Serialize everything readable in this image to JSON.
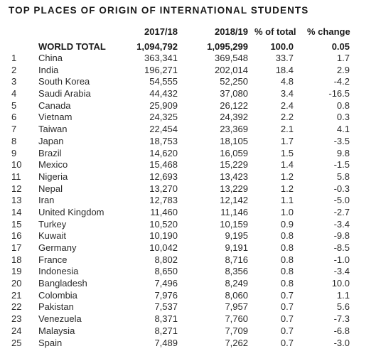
{
  "title": "TOP PLACES OF ORIGIN OF INTERNATIONAL STUDENTS",
  "headers": {
    "y2017": "2017/18",
    "y2018": "2018/19",
    "pct_total": "% of total",
    "pct_change": "% change"
  },
  "world_total": {
    "label": "WORLD TOTAL",
    "y2017": "1,094,792",
    "y2018": "1,095,299",
    "pct_total": "100.0",
    "pct_change": "0.05"
  },
  "rows": [
    {
      "rank": "1",
      "country": "China",
      "y2017": "363,341",
      "y2018": "369,548",
      "pct_total": "33.7",
      "pct_change": "1.7"
    },
    {
      "rank": "2",
      "country": "India",
      "y2017": "196,271",
      "y2018": "202,014",
      "pct_total": "18.4",
      "pct_change": "2.9"
    },
    {
      "rank": "3",
      "country": "South Korea",
      "y2017": "54,555",
      "y2018": "52,250",
      "pct_total": "4.8",
      "pct_change": "-4.2"
    },
    {
      "rank": "4",
      "country": "Saudi Arabia",
      "y2017": "44,432",
      "y2018": "37,080",
      "pct_total": "3.4",
      "pct_change": "-16.5"
    },
    {
      "rank": "5",
      "country": "Canada",
      "y2017": "25,909",
      "y2018": "26,122",
      "pct_total": "2.4",
      "pct_change": "0.8"
    },
    {
      "rank": "6",
      "country": "Vietnam",
      "y2017": "24,325",
      "y2018": "24,392",
      "pct_total": "2.2",
      "pct_change": "0.3"
    },
    {
      "rank": "7",
      "country": "Taiwan",
      "y2017": "22,454",
      "y2018": "23,369",
      "pct_total": "2.1",
      "pct_change": "4.1"
    },
    {
      "rank": "8",
      "country": "Japan",
      "y2017": "18,753",
      "y2018": "18,105",
      "pct_total": "1.7",
      "pct_change": "-3.5"
    },
    {
      "rank": "9",
      "country": "Brazil",
      "y2017": "14,620",
      "y2018": "16,059",
      "pct_total": "1.5",
      "pct_change": "9.8"
    },
    {
      "rank": "10",
      "country": "Mexico",
      "y2017": "15,468",
      "y2018": "15,229",
      "pct_total": "1.4",
      "pct_change": "-1.5"
    },
    {
      "rank": "11",
      "country": "Nigeria",
      "y2017": "12,693",
      "y2018": "13,423",
      "pct_total": "1.2",
      "pct_change": "5.8"
    },
    {
      "rank": "12",
      "country": "Nepal",
      "y2017": "13,270",
      "y2018": "13,229",
      "pct_total": "1.2",
      "pct_change": "-0.3"
    },
    {
      "rank": "13",
      "country": "Iran",
      "y2017": "12,783",
      "y2018": "12,142",
      "pct_total": "1.1",
      "pct_change": "-5.0"
    },
    {
      "rank": "14",
      "country": "United Kingdom",
      "y2017": "11,460",
      "y2018": "11,146",
      "pct_total": "1.0",
      "pct_change": "-2.7"
    },
    {
      "rank": "15",
      "country": "Turkey",
      "y2017": "10,520",
      "y2018": "10,159",
      "pct_total": "0.9",
      "pct_change": "-3.4"
    },
    {
      "rank": "16",
      "country": "Kuwait",
      "y2017": "10,190",
      "y2018": "9,195",
      "pct_total": "0.8",
      "pct_change": "-9.8"
    },
    {
      "rank": "17",
      "country": "Germany",
      "y2017": "10,042",
      "y2018": "9,191",
      "pct_total": "0.8",
      "pct_change": "-8.5"
    },
    {
      "rank": "18",
      "country": "France",
      "y2017": "8,802",
      "y2018": "8,716",
      "pct_total": "0.8",
      "pct_change": "-1.0"
    },
    {
      "rank": "19",
      "country": "Indonesia",
      "y2017": "8,650",
      "y2018": "8,356",
      "pct_total": "0.8",
      "pct_change": "-3.4"
    },
    {
      "rank": "20",
      "country": "Bangladesh",
      "y2017": "7,496",
      "y2018": "8,249",
      "pct_total": "0.8",
      "pct_change": "10.0"
    },
    {
      "rank": "21",
      "country": "Colombia",
      "y2017": "7,976",
      "y2018": "8,060",
      "pct_total": "0.7",
      "pct_change": "1.1"
    },
    {
      "rank": "22",
      "country": "Pakistan",
      "y2017": "7,537",
      "y2018": "7,957",
      "pct_total": "0.7",
      "pct_change": "5.6"
    },
    {
      "rank": "23",
      "country": "Venezuela",
      "y2017": "8,371",
      "y2018": "7,760",
      "pct_total": "0.7",
      "pct_change": "-7.3"
    },
    {
      "rank": "24",
      "country": "Malaysia",
      "y2017": "8,271",
      "y2018": "7,709",
      "pct_total": "0.7",
      "pct_change": "-6.8"
    },
    {
      "rank": "25",
      "country": "Spain",
      "y2017": "7,489",
      "y2018": "7,262",
      "pct_total": "0.7",
      "pct_change": "-3.0"
    }
  ]
}
